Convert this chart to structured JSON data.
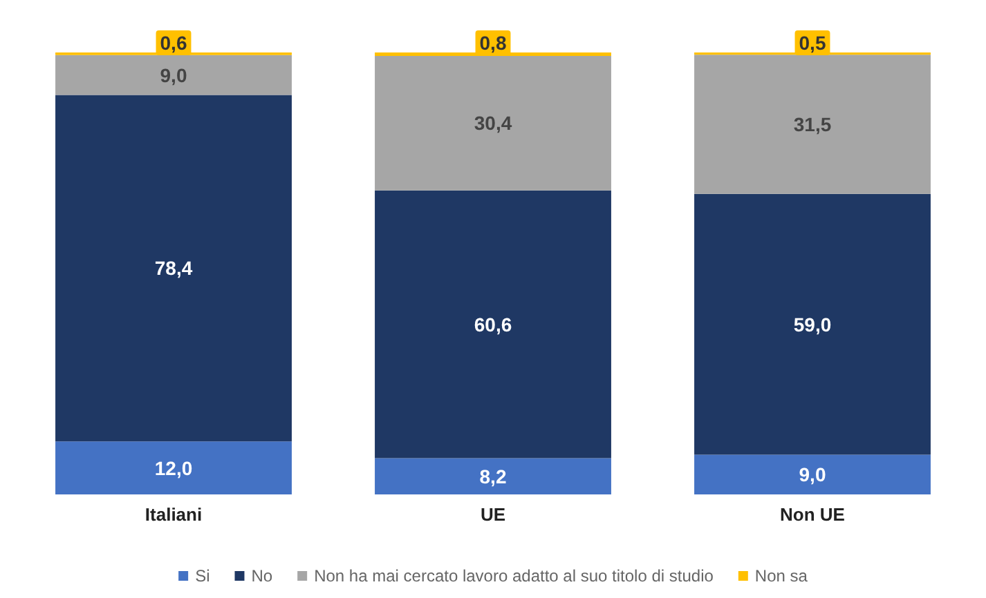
{
  "chart_data": {
    "type": "bar",
    "stacked": true,
    "categories": [
      "Italiani",
      "UE",
      "Non UE"
    ],
    "ylim": [
      0,
      100
    ],
    "tick_labels": "x",
    "legend": "bottom",
    "series": [
      {
        "name": "Si",
        "color": "#4472c4",
        "values": [
          12.0,
          8.2,
          9.0
        ],
        "value_labels": [
          "12,0",
          "8,2",
          "9,0"
        ]
      },
      {
        "name": "No",
        "color": "#1f3864",
        "values": [
          78.4,
          60.6,
          59.0
        ],
        "value_labels": [
          "78,4",
          "60,6",
          "59,0"
        ]
      },
      {
        "name": "Non ha mai cercato lavoro adatto al suo titolo di studio",
        "color": "#a6a6a6",
        "values": [
          9.0,
          30.4,
          31.5
        ],
        "value_labels": [
          "9,0",
          "30,4",
          "31,5"
        ]
      },
      {
        "name": "Non sa",
        "color": "#ffc000",
        "values": [
          0.6,
          0.8,
          0.5
        ],
        "value_labels": [
          "0,6",
          "0,8",
          "0,5"
        ]
      }
    ]
  }
}
